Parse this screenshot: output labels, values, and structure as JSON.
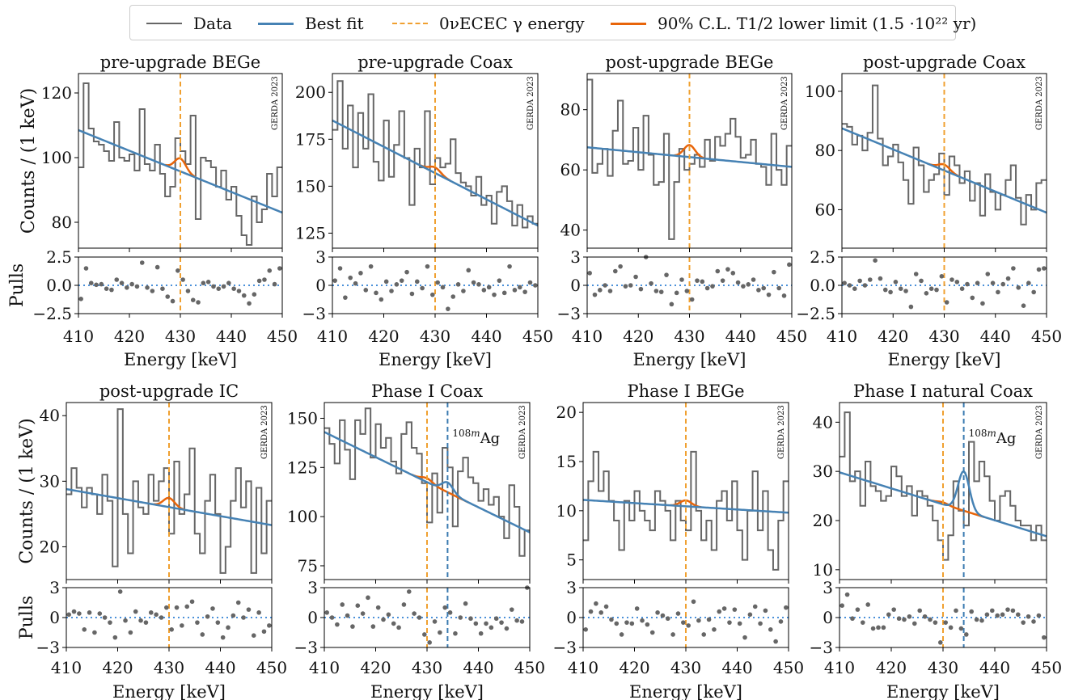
{
  "legend": {
    "items": [
      {
        "label": "Data",
        "color": "#666666",
        "style": "solid"
      },
      {
        "label": "Best fit",
        "color": "#4682b4",
        "style": "solid"
      },
      {
        "label": "0νECEC γ energy",
        "color": "#f0a030",
        "style": "dashed"
      },
      {
        "label": "90% C.L. T1/2 lower limit (1.5 ·10²² yr)",
        "color": "#e8650a",
        "style": "solid"
      }
    ]
  },
  "colors": {
    "data": "#666666",
    "fit": "#4682b4",
    "limit": "#e8650a",
    "gamma": "#f0a030",
    "ag": "#3a7ab0",
    "pulls_zero": "#4a90d9"
  },
  "common": {
    "xlabel": "Energy [keV]",
    "ylabel": "Counts / (1 keV)",
    "pulls_ylabel": "Pulls",
    "watermark": "GERDA 2023",
    "gamma_energy": 430,
    "ag_energy": 434,
    "ag_label": "108mAg",
    "x_ticks": [
      "410",
      "420",
      "430",
      "440",
      "450"
    ],
    "xlim": [
      410,
      450
    ]
  },
  "chart_data": [
    {
      "type": "line",
      "title": "pre-upgrade BEGe",
      "xlim": [
        410,
        450
      ],
      "ylim": [
        72,
        126
      ],
      "yticks": [
        80,
        100,
        120
      ],
      "pulls_ylim": [
        -2.5,
        2.5
      ],
      "pulls_ticks": [
        "−2.5",
        "0.0",
        "2.5"
      ],
      "data_counts": [
        97,
        123,
        109,
        105,
        104,
        102,
        99,
        111,
        100,
        99,
        101,
        96,
        115,
        98,
        96,
        104,
        95,
        88,
        91,
        106,
        102,
        98,
        113,
        81,
        100,
        99,
        97,
        91,
        96,
        87,
        91,
        82,
        76,
        73,
        88,
        80,
        84,
        95,
        88,
        97
      ],
      "fit_start": 108.5,
      "fit_end": 83,
      "peak_height": 4,
      "has_ag": false,
      "pulls": [
        -1.2,
        1.5,
        0.2,
        0.05,
        0.1,
        -0.3,
        -0.4,
        0.5,
        0.2,
        -0.2,
        0.1,
        -0.1,
        2.0,
        -0.2,
        -0.5,
        1.6,
        -0.3,
        -1.0,
        -1.4,
        1.3,
        0.5,
        -0.5,
        -1.3,
        -1.5,
        0.2,
        0.3,
        -0.1,
        -0.3,
        -0.1,
        0.2,
        -0.3,
        -0.5,
        -0.9,
        -1.6,
        -0.8,
        0.4,
        0.5,
        1.3,
        0.1,
        1.5
      ]
    },
    {
      "type": "line",
      "title": "pre-upgrade Coax",
      "xlim": [
        410,
        450
      ],
      "ylim": [
        117,
        210
      ],
      "yticks": [
        125,
        150,
        175,
        200
      ],
      "pulls_ylim": [
        -3,
        3
      ],
      "pulls_ticks": [
        "−3",
        "0",
        "3"
      ],
      "data_counts": [
        180,
        206,
        170,
        193,
        160,
        189,
        170,
        199,
        163,
        153,
        185,
        155,
        172,
        190,
        165,
        140,
        170,
        160,
        190,
        151,
        165,
        160,
        162,
        175,
        157,
        152,
        150,
        145,
        155,
        140,
        145,
        130,
        147,
        150,
        142,
        129,
        140,
        128,
        134,
        130
      ],
      "fit_start": 185,
      "fit_end": 129,
      "peak_height": 3,
      "has_ag": false,
      "pulls": [
        0.5,
        1.8,
        -1.3,
        0.8,
        0.2,
        1.3,
        -0.5,
        2.0,
        -0.8,
        -1.5,
        0.4,
        -0.6,
        0.1,
        0.5,
        1.4,
        -0.9,
        0.4,
        -0.3,
        2.0,
        -1.0,
        0.3,
        -0.2,
        -2.5,
        -1.2,
        0.1,
        -0.6,
        1.6,
        0.3,
        0.1,
        -0.5,
        -0.2,
        -1.0,
        0.5,
        -0.8,
        2.0,
        -0.5,
        -0.2,
        -0.7,
        0.3,
        0.0
      ]
    },
    {
      "type": "line",
      "title": "post-upgrade BEGe",
      "xlim": [
        410,
        450
      ],
      "ylim": [
        34,
        92
      ],
      "yticks": [
        40,
        60,
        80
      ],
      "pulls_ylim": [
        -3,
        3
      ],
      "pulls_ticks": [
        "−3",
        "0",
        "3"
      ],
      "data_counts": [
        90,
        59,
        62,
        67,
        58,
        73,
        83,
        62,
        63,
        74,
        60,
        78,
        65,
        55,
        56,
        72,
        37,
        56,
        67,
        60,
        62,
        65,
        61,
        70,
        63,
        71,
        68,
        72,
        77,
        71,
        64,
        65,
        70,
        62,
        61,
        55,
        72,
        60,
        55,
        68
      ],
      "fit_start": 67.5,
      "fit_end": 61,
      "peak_height": 4,
      "has_ag": false,
      "pulls": [
        1.3,
        -1.0,
        -0.5,
        0.0,
        -0.6,
        1.5,
        2.0,
        -0.1,
        0.0,
        0.9,
        -0.4,
        3.0,
        0.2,
        -0.6,
        -0.7,
        1.1,
        -2.0,
        -0.8,
        0.6,
        -0.6,
        -1.5,
        0.5,
        0.4,
        -0.3,
        -0.1,
        1.5,
        0.5,
        1.7,
        1.3,
        0.3,
        -0.1,
        0.1,
        0.6,
        -0.5,
        -0.3,
        -1.0,
        1.4,
        -0.3,
        -1.1,
        2.2
      ]
    },
    {
      "type": "line",
      "title": "post-upgrade Coax",
      "xlim": [
        410,
        450
      ],
      "ylim": [
        47,
        106
      ],
      "yticks": [
        60,
        80,
        100
      ],
      "pulls_ylim": [
        -2.5,
        2.5
      ],
      "pulls_ticks": [
        "−2.5",
        "0.0",
        "2.5"
      ],
      "data_counts": [
        89,
        88,
        82,
        85,
        80,
        86,
        102,
        84,
        75,
        78,
        82,
        76,
        70,
        62,
        81,
        75,
        66,
        70,
        72,
        79,
        65,
        78,
        75,
        69,
        73,
        63,
        69,
        58,
        72,
        66,
        60,
        65,
        70,
        75,
        64,
        55,
        65,
        60,
        69,
        70
      ],
      "fit_start": 87.5,
      "fit_end": 59,
      "peak_height": 2,
      "has_ag": false,
      "pulls": [
        0.2,
        0.0,
        -0.3,
        0.4,
        0.0,
        0.5,
        2.2,
        0.6,
        -0.4,
        -0.6,
        0.3,
        -0.3,
        -0.5,
        -1.9,
        1.0,
        0.4,
        -0.7,
        -0.3,
        -0.4,
        0.8,
        -1.5,
        0.5,
        0.3,
        -0.3,
        0.1,
        -1.1,
        0.2,
        -1.6,
        1.0,
        0.2,
        -0.6,
        0.1,
        0.6,
        1.5,
        -0.2,
        -1.8,
        0.2,
        -0.6,
        1.4,
        1.5
      ]
    },
    {
      "type": "line",
      "title": "post-upgrade IC",
      "xlim": [
        410,
        450
      ],
      "ylim": [
        15,
        42
      ],
      "yticks": [
        20,
        30,
        40
      ],
      "pulls_ylim": [
        -3,
        3
      ],
      "pulls_ticks": [
        "−3",
        "0",
        "3"
      ],
      "data_counts": [
        28,
        32,
        29,
        26,
        29,
        28,
        25,
        31,
        27,
        17,
        41,
        25,
        19,
        30,
        26,
        25,
        31,
        27,
        30,
        32,
        22,
        33,
        25,
        28,
        35,
        22,
        19,
        27,
        31,
        25,
        16,
        20,
        27,
        32,
        26,
        30,
        16,
        29,
        19,
        27
      ],
      "fit_start": 28.8,
      "fit_end": 23.3,
      "peak_height": 1.4,
      "has_ag": false,
      "pulls": [
        0.3,
        0.6,
        0.4,
        -1.2,
        0.5,
        -1.5,
        0.4,
        0.0,
        -0.5,
        -2.0,
        2.6,
        -0.3,
        -1.5,
        0.6,
        -0.3,
        -0.5,
        0.5,
        0.3,
        0.0,
        1.0,
        -1.2,
        1.0,
        -0.8,
        1.1,
        1.6,
        -0.5,
        -1.7,
        0.1,
        0.9,
        -0.5,
        -2.0,
        -1.0,
        0.2,
        1.5,
        0.0,
        0.8,
        -1.8,
        0.5,
        -1.4,
        -0.8
      ]
    },
    {
      "type": "line",
      "title": "Phase I Coax",
      "xlim": [
        410,
        450
      ],
      "ylim": [
        68,
        158
      ],
      "yticks": [
        75,
        100,
        125,
        150
      ],
      "pulls_ylim": [
        -3,
        3
      ],
      "pulls_ticks": [
        "−3",
        "0",
        "3"
      ],
      "data_counts": [
        145,
        137,
        127,
        149,
        134,
        119,
        149,
        142,
        155,
        130,
        147,
        135,
        140,
        128,
        122,
        142,
        148,
        135,
        132,
        117,
        97,
        122,
        102,
        135,
        125,
        95,
        123,
        130,
        120,
        117,
        108,
        114,
        106,
        110,
        100,
        89,
        116,
        105,
        80,
        93
      ],
      "fit_start": 143,
      "fit_end": 92,
      "peak_height": 2,
      "has_ag": true,
      "ag_height": 5,
      "pulls": [
        0.5,
        0.0,
        -0.7,
        1.3,
        0.2,
        -0.9,
        1.2,
        0.4,
        2.0,
        -0.9,
        1.0,
        -0.2,
        0.3,
        -0.6,
        -1.0,
        1.3,
        2.6,
        0.4,
        0.0,
        -1.7,
        -2.5,
        -0.4,
        -1.5,
        1.0,
        0.5,
        -1.6,
        0.0,
        1.4,
        -0.1,
        -0.6,
        -1.6,
        -0.6,
        -1.0,
        -0.1,
        -0.5,
        -1.1,
        0.8,
        -0.3,
        -0.4,
        3.0
      ]
    },
    {
      "type": "line",
      "title": "Phase I BEGe",
      "xlim": [
        410,
        450
      ],
      "ylim": [
        3,
        21
      ],
      "yticks": [
        5,
        10,
        15,
        20
      ],
      "pulls_ylim": [
        -3,
        3
      ],
      "pulls_ticks": [
        "−3",
        "0",
        "3"
      ],
      "data_counts": [
        7,
        13,
        16,
        12,
        14,
        11,
        9,
        6,
        11,
        9,
        12,
        10,
        9,
        8,
        12,
        11,
        10,
        7,
        11,
        9,
        8,
        16,
        10,
        7,
        9,
        6,
        11,
        12,
        9,
        13,
        8,
        5,
        10,
        14,
        8,
        12,
        6,
        4,
        9,
        13
      ],
      "fit_start": 11.1,
      "fit_end": 9.8,
      "peak_height": 0.6,
      "has_ag": false,
      "pulls": [
        -1.2,
        0.6,
        1.4,
        0.5,
        1.1,
        -0.2,
        -0.6,
        -1.7,
        -0.5,
        -0.6,
        0.9,
        -0.3,
        -0.7,
        -1.5,
        0.5,
        0.2,
        -0.1,
        -1.7,
        0.4,
        -0.5,
        -0.8,
        1.6,
        -0.3,
        -1.7,
        -0.2,
        -1.2,
        0.6,
        0.9,
        -0.5,
        0.8,
        -0.6,
        -2.0,
        0.3,
        1.1,
        -0.6,
        0.7,
        -1.2,
        -2.4,
        -0.4,
        1.0
      ]
    },
    {
      "type": "line",
      "title": "Phase I natural Coax",
      "xlim": [
        410,
        450
      ],
      "ylim": [
        8,
        44
      ],
      "yticks": [
        10,
        20,
        30,
        40
      ],
      "pulls_ylim": [
        -3,
        3
      ],
      "pulls_ticks": [
        "−3",
        "0",
        "3"
      ],
      "data_counts": [
        33,
        42,
        28,
        30,
        23,
        32,
        27,
        26,
        24,
        25,
        31,
        29,
        25,
        27,
        21,
        26,
        25,
        23,
        20,
        16,
        12,
        17,
        28,
        22,
        19,
        36,
        28,
        32,
        29,
        24,
        20,
        25,
        26,
        23,
        20,
        19,
        19,
        16,
        19,
        16
      ],
      "fit_start": 29.8,
      "fit_end": 16.8,
      "peak_height": 0.4,
      "has_ag": true,
      "ag_height": 8,
      "pulls": [
        1.2,
        2.3,
        -0.1,
        0.8,
        -0.5,
        1.3,
        -1.1,
        -1.0,
        -1.0,
        0.3,
        0.8,
        -0.1,
        -0.2,
        0.1,
        -0.6,
        0.7,
        0.1,
        -0.2,
        -0.5,
        -2.5,
        -0.5,
        -1.0,
        0.7,
        -1.1,
        -1.7,
        0.6,
        -0.2,
        -0.3,
        0.3,
        0.7,
        0.2,
        0.3,
        0.8,
        0.7,
        0.3,
        -0.5,
        0.1,
        -0.4,
        0.2,
        -2.0
      ]
    }
  ]
}
